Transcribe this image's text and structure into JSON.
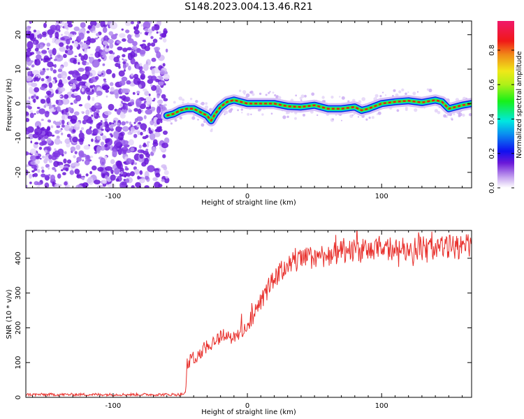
{
  "title": "S148.2023.004.13.46.R21",
  "chart_data": [
    {
      "type": "heatmap",
      "name": "spectrogram",
      "xlabel": "Height of straight line (km)",
      "ylabel": "Frequency (Hz)",
      "xlim": [
        -165,
        167
      ],
      "ylim": [
        -24.5,
        24
      ],
      "xticks": [
        -100,
        0,
        100
      ],
      "yticks": [
        -20,
        -10,
        0,
        10,
        20
      ],
      "noise_region_x": [
        -165,
        -60
      ],
      "ridge": {
        "x": [
          -60,
          -55,
          -50,
          -45,
          -40,
          -35,
          -30,
          -27,
          -24,
          -20,
          -15,
          -10,
          -5,
          0,
          10,
          20,
          30,
          40,
          50,
          60,
          70,
          80,
          85,
          90,
          100,
          110,
          120,
          130,
          140,
          145,
          150,
          155,
          160,
          167
        ],
        "y": [
          -3.5,
          -3,
          -2,
          -1.5,
          -1.5,
          -2.5,
          -3.5,
          -5,
          -3,
          -1,
          0.5,
          1,
          0.5,
          0,
          0,
          0,
          -0.8,
          -1,
          -0.5,
          -1.5,
          -1.5,
          -1,
          -2,
          -1.5,
          0,
          0.5,
          0.8,
          0.3,
          1,
          0.5,
          -1.5,
          -1,
          -0.5,
          0
        ]
      },
      "colorbar": {
        "label": "Normalized spectral amplitude",
        "ticks": [
          "0.0",
          "0.2",
          "0.4",
          "0.6",
          "0.8"
        ],
        "range": [
          0,
          0.97
        ]
      },
      "colors": {
        "noise": "#6a18d8",
        "ridge_outer": "#0a22e8",
        "ridge_mid": "#00d4d4",
        "ridge_inner": "#3cec24",
        "ridge_peak": "#e81818"
      }
    },
    {
      "type": "line",
      "name": "snr",
      "xlabel": "Height of straight line (km)",
      "ylabel": "SNR (10 * v/v)",
      "xlim": [
        -165,
        167
      ],
      "ylim": [
        0,
        480
      ],
      "xticks": [
        -100,
        0,
        100
      ],
      "yticks": [
        0,
        100,
        200,
        300,
        400
      ],
      "color": "#e8302c",
      "series": {
        "x": [
          -165,
          -100,
          -60,
          -50,
          -46,
          -45,
          -40,
          -35,
          -30,
          -25,
          -20,
          -15,
          -10,
          -5,
          0,
          5,
          10,
          15,
          20,
          25,
          30,
          35,
          40,
          50,
          60,
          80,
          100,
          120,
          140,
          160,
          167
        ],
        "y": [
          8,
          8,
          8,
          8,
          12,
          95,
          115,
          130,
          150,
          160,
          175,
          185,
          165,
          190,
          205,
          240,
          275,
          310,
          340,
          360,
          385,
          390,
          395,
          405,
          410,
          420,
          425,
          428,
          430,
          434,
          435
        ]
      }
    }
  ]
}
